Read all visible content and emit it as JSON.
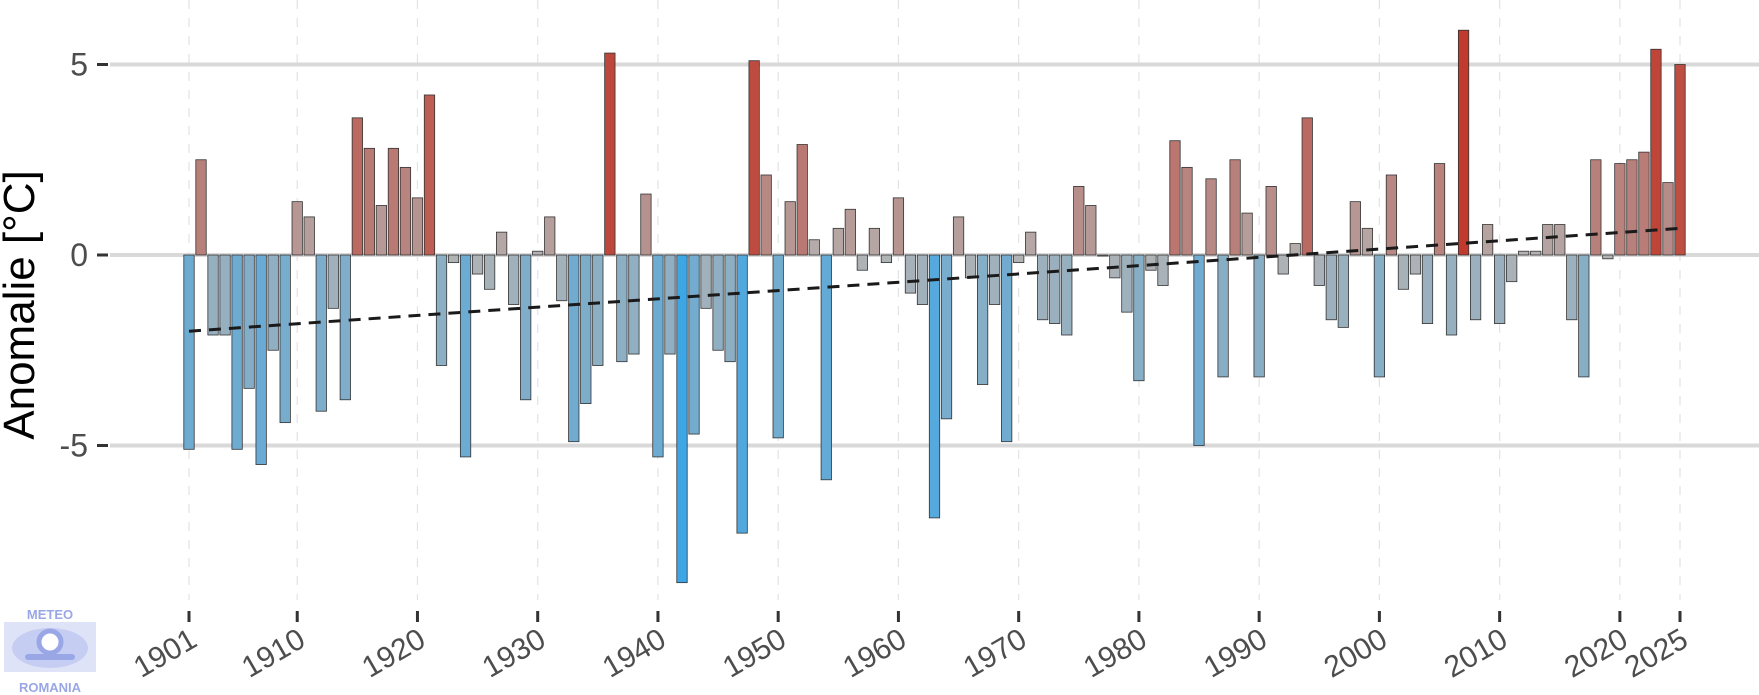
{
  "chart_data": {
    "type": "bar",
    "ylabel": "Anomalie [°C]",
    "xlabel": "",
    "title": "",
    "ylim": [
      -8.6,
      6.0
    ],
    "yticks": [
      5,
      0,
      -5
    ],
    "ytick_labels": [
      "5",
      "0",
      "-5"
    ],
    "xticks": [
      1901,
      1910,
      1920,
      1930,
      1940,
      1950,
      1960,
      1970,
      1980,
      1990,
      2000,
      2010,
      2020,
      2025
    ],
    "xtick_labels": [
      "1901",
      "1910",
      "1920",
      "1930",
      "1940",
      "1950",
      "1960",
      "1970",
      "1980",
      "1990",
      "2000",
      "2010",
      "2020",
      "2025"
    ],
    "x": [
      1901,
      1902,
      1903,
      1904,
      1905,
      1906,
      1907,
      1908,
      1909,
      1910,
      1911,
      1912,
      1913,
      1914,
      1915,
      1916,
      1917,
      1918,
      1919,
      1920,
      1921,
      1922,
      1923,
      1924,
      1925,
      1926,
      1927,
      1928,
      1929,
      1930,
      1931,
      1932,
      1933,
      1934,
      1935,
      1936,
      1937,
      1938,
      1939,
      1940,
      1941,
      1942,
      1943,
      1944,
      1945,
      1946,
      1947,
      1948,
      1949,
      1950,
      1951,
      1952,
      1953,
      1954,
      1955,
      1956,
      1957,
      1958,
      1959,
      1960,
      1961,
      1962,
      1963,
      1964,
      1965,
      1966,
      1967,
      1968,
      1969,
      1970,
      1971,
      1972,
      1973,
      1974,
      1975,
      1976,
      1977,
      1978,
      1979,
      1980,
      1981,
      1982,
      1983,
      1984,
      1985,
      1986,
      1987,
      1988,
      1989,
      1990,
      1991,
      1992,
      1993,
      1994,
      1995,
      1996,
      1997,
      1998,
      1999,
      2000,
      2001,
      2002,
      2003,
      2004,
      2005,
      2006,
      2007,
      2008,
      2009,
      2010,
      2011,
      2012,
      2013,
      2014,
      2015,
      2016,
      2017,
      2018,
      2019,
      2020,
      2021,
      2022,
      2023,
      2024,
      2025
    ],
    "values": [
      -5.1,
      2.5,
      -2.1,
      -2.1,
      -5.1,
      -3.5,
      -5.5,
      -2.5,
      -4.4,
      1.4,
      1.0,
      -4.1,
      -1.4,
      -3.8,
      3.6,
      2.8,
      1.3,
      2.8,
      2.3,
      1.5,
      4.2,
      -2.9,
      -0.2,
      -5.3,
      -0.5,
      -0.9,
      0.6,
      -1.3,
      -3.8,
      0.1,
      1.0,
      -1.2,
      -4.9,
      -3.9,
      -2.9,
      5.3,
      -2.8,
      -2.6,
      1.6,
      -5.3,
      -2.6,
      -8.6,
      -4.7,
      -1.4,
      -2.5,
      -2.8,
      -7.3,
      5.1,
      2.1,
      -4.8,
      1.4,
      2.9,
      0.4,
      -5.9,
      0.7,
      1.2,
      -0.4,
      0.7,
      -0.2,
      1.5,
      -1.0,
      -1.3,
      -6.9,
      -4.3,
      1.0,
      -0.6,
      -3.4,
      -1.3,
      -4.9,
      -0.2,
      0.6,
      -1.7,
      -1.8,
      -2.1,
      1.8,
      1.3,
      0.0,
      -0.6,
      -1.5,
      -3.3,
      -0.4,
      -0.8,
      3.0,
      2.3,
      -5.0,
      2.0,
      -3.2,
      2.5,
      1.1,
      -3.2,
      1.8,
      -0.5,
      0.3,
      3.6,
      -0.8,
      -1.7,
      -1.9,
      1.4,
      0.7,
      -3.2,
      2.1,
      -0.9,
      -0.5,
      -1.8,
      2.4,
      -2.1,
      5.9,
      -1.7,
      0.8,
      -1.8,
      -0.7,
      0.1,
      0.1,
      0.8,
      0.8,
      -1.7,
      -3.2,
      2.5,
      -0.1,
      2.4,
      2.5,
      2.7,
      5.4,
      1.9,
      5.0
    ],
    "trend": {
      "x": [
        1901,
        2025
      ],
      "y": [
        -2.0,
        0.7
      ],
      "style": "dashed"
    },
    "colors": {
      "neg_strong": "#3fa6e6",
      "neutral": "#b3b3b3",
      "pos_strong": "#c0392b",
      "grid": "#d9d9d9",
      "trend": "#1a1a1a"
    },
    "grid": true,
    "legend": "none"
  },
  "logo": {
    "top_text": "METEO",
    "bottom_text": "ROMANIA"
  }
}
